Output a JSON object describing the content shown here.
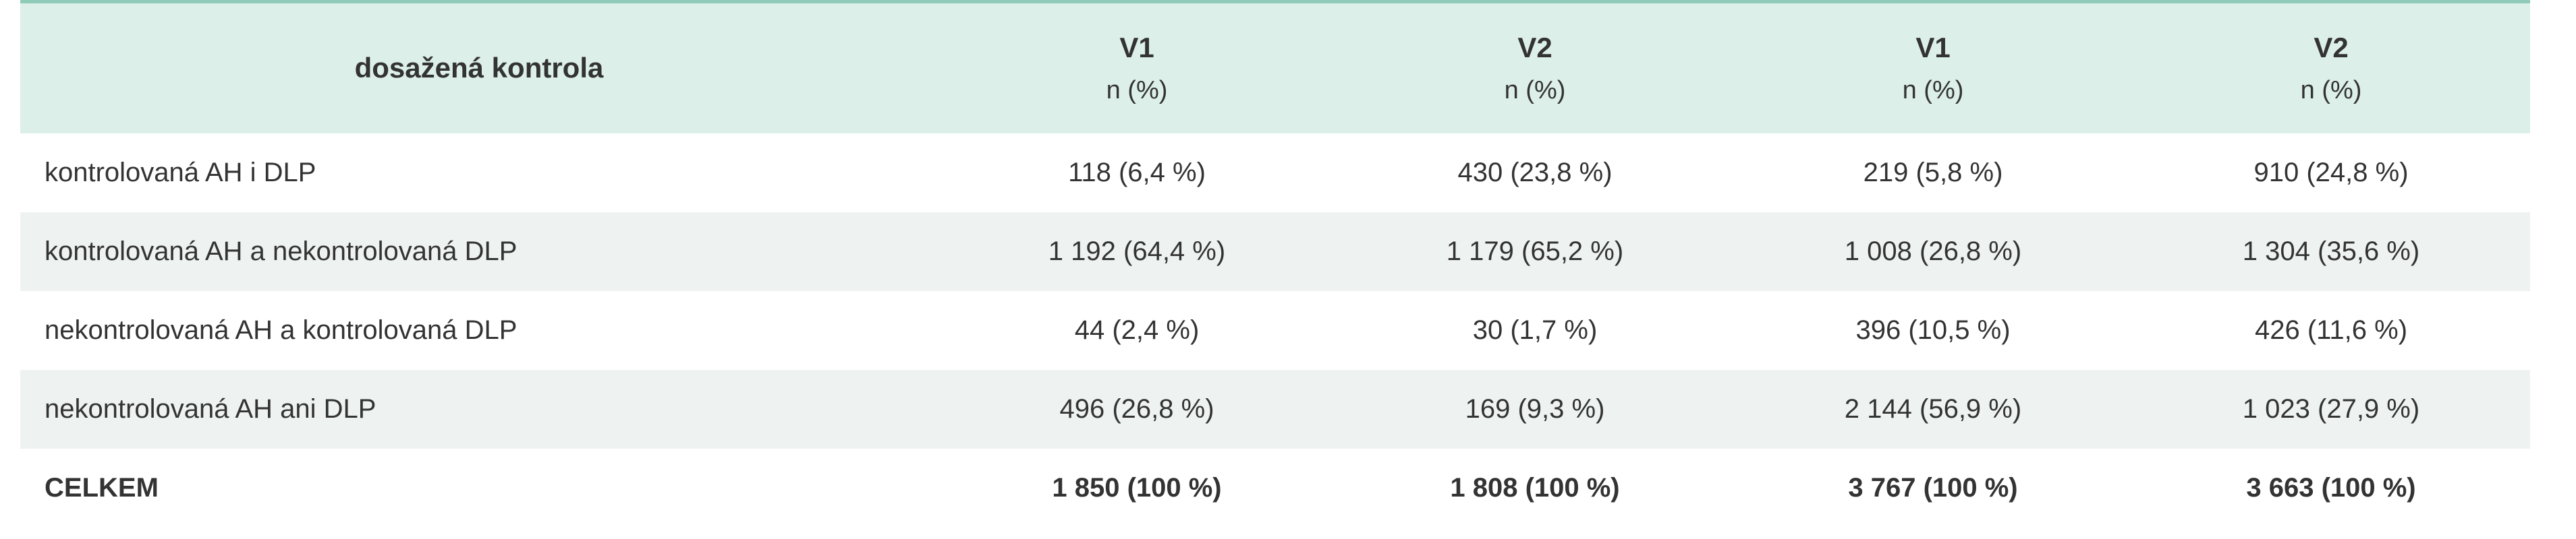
{
  "table": {
    "header": {
      "title": "dosažená kontrola",
      "columns": [
        {
          "label": "V1",
          "sub": "n (%)"
        },
        {
          "label": "V2",
          "sub": "n (%)"
        },
        {
          "label": "V1",
          "sub": "n (%)"
        },
        {
          "label": "V2",
          "sub": "n (%)"
        }
      ]
    },
    "rows": [
      [
        "kontrolovaná AH i DLP",
        "118 (6,4 %)",
        "430 (23,8 %)",
        "219 (5,8 %)",
        "910 (24,8 %)"
      ],
      [
        "kontrolovaná AH a nekontrolovaná DLP",
        "1 192 (64,4 %)",
        "1 179 (65,2 %)",
        "1 008 (26,8 %)",
        "1 304 (35,6 %)"
      ],
      [
        "nekontrolovaná AH a kontrolovaná DLP",
        "44 (2,4 %)",
        "30 (1,7 %)",
        "396 (10,5 %)",
        "426 (11,6 %)"
      ],
      [
        "nekontrolovaná AH ani DLP",
        "496 (26,8 %)",
        "169 (9,3 %)",
        "2 144 (56,9 %)",
        "1 023 (27,9 %)"
      ],
      [
        "CELKEM",
        "1 850 (100 %)",
        "1 808 (100 %)",
        "3 767 (100 %)",
        "3 663 (100 %)"
      ]
    ]
  }
}
